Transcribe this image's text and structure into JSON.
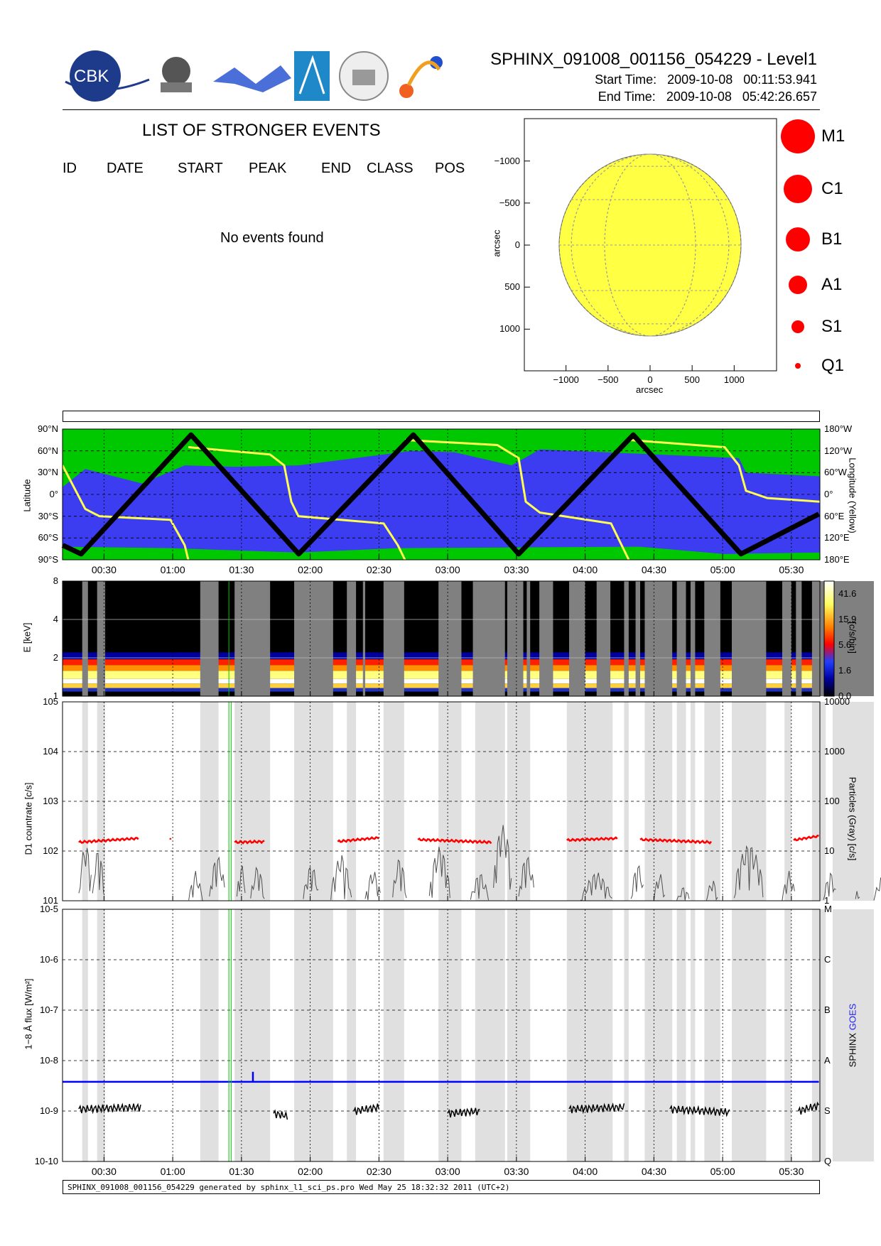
{
  "header": {
    "title": "SPHINX_091008_001156_054229 - Level1",
    "start_label": "Start Time:",
    "start_value": "2009-10-08   00:11:53.941",
    "end_label": "End Time:",
    "end_value": "2009-10-08   05:42:26.657",
    "logos": [
      "CBK",
      "P.N.Lebedev Physical Institute of the Russian Academy of Science",
      "MIFI",
      "triangle-logo",
      "seal-logo",
      "sphinx-logo"
    ]
  },
  "events": {
    "title": "LIST OF STRONGER EVENTS",
    "columns": [
      "ID",
      "DATE",
      "START",
      "PEAK",
      "END",
      "CLASS",
      "POS"
    ],
    "empty_text": "No events found"
  },
  "sun_map": {
    "xlabel": "arcsec",
    "ylabel": "arcsec",
    "xticks": [
      "−1000",
      "−500",
      "0",
      "500",
      "1000"
    ],
    "yticks": [
      "1000",
      "500",
      "0",
      "−500",
      "−1000"
    ],
    "disk_color": "#ffff44"
  },
  "size_legend": [
    "M1",
    "C1",
    "B1",
    "A1",
    "S1",
    "Q1"
  ],
  "colors": {
    "ocean": "#3c3cf0",
    "land": "#00c800",
    "track": "#000000",
    "longitude": "#ffff50",
    "countrate": "#ff0000",
    "particles": "#505050",
    "sphinx": "#000000",
    "goes": "#0000ff",
    "gap": "#e0e0e0",
    "flare_marker": "#00c800"
  },
  "time_axis": {
    "start": "00:11:54",
    "end": "05:42:27",
    "ticks": [
      "00:30",
      "01:00",
      "01:30",
      "02:00",
      "02:30",
      "03:00",
      "03:30",
      "04:00",
      "04:30",
      "05:00",
      "05:30"
    ]
  },
  "chart_data": [
    {
      "type": "line",
      "panel": "orbit",
      "ylabel": "Latitude",
      "y2label": "Longitude (Yellow)",
      "yticks": [
        "90°N",
        "60°N",
        "30°N",
        "0°",
        "30°S",
        "60°S",
        "90°S"
      ],
      "y2ticks": [
        "180°W",
        "120°W",
        "60°W",
        "0°",
        "60°E",
        "120°E",
        "180°E"
      ],
      "series": [
        {
          "color": "track",
          "x": [
            "00:12",
            "00:20",
            "01:08",
            "01:55",
            "02:45",
            "03:31",
            "04:21",
            "05:08",
            "05:42"
          ],
          "y": [
            -70,
            -82,
            82,
            -82,
            82,
            -82,
            82,
            -82,
            -27
          ]
        }
      ]
    },
    {
      "type": "heatmap",
      "panel": "spectrum",
      "ylabel": "E [keV]",
      "yticks": [
        "1",
        "2",
        "4",
        "8"
      ],
      "colorbar_label": "[c/s/bin]",
      "colorbar_ticks": [
        "0.0",
        "1.6",
        "5.6",
        "15.9",
        "41.6"
      ]
    },
    {
      "type": "line",
      "panel": "countrate",
      "ylabel": "D1 countrate [c/s]",
      "y2label": "Particles (Gray) [c/s]",
      "yticks": [
        "10^1",
        "10^2",
        "10^3",
        "10^4",
        "10^5"
      ],
      "y2ticks": [
        "1",
        "10",
        "100",
        "1000",
        "10000"
      ],
      "series": [
        {
          "color": "countrate",
          "segments": [
            {
              "x": [
                "00:19",
                "00:45"
              ],
              "y": [
                150,
                180
              ]
            },
            {
              "x": [
                "00:59",
                "00:59"
              ],
              "y": [
                175,
                175
              ]
            },
            {
              "x": [
                "01:27",
                "01:40"
              ],
              "y": [
                150,
                155
              ]
            },
            {
              "x": [
                "02:12",
                "02:30"
              ],
              "y": [
                155,
                185
              ]
            },
            {
              "x": [
                "02:47",
                "03:19"
              ],
              "y": [
                170,
                150
              ]
            },
            {
              "x": [
                "03:52",
                "04:14"
              ],
              "y": [
                165,
                180
              ]
            },
            {
              "x": [
                "04:24",
                "04:55"
              ],
              "y": [
                170,
                150
              ]
            },
            {
              "x": [
                "05:31",
                "05:42"
              ],
              "y": [
                165,
                200
              ]
            }
          ]
        }
      ]
    },
    {
      "type": "line",
      "panel": "flux",
      "ylabel": "1−8 Å flux [W/m²]",
      "y2label_sphinx": "SPHINX",
      "y2label_goes": "GOES",
      "yticks": [
        "10^-10",
        "10^-9",
        "10^-8",
        "10^-7",
        "10^-6",
        "10^-5"
      ],
      "y2ticks": [
        "Q",
        "S",
        "A",
        "B",
        "C",
        "M"
      ],
      "series": [
        {
          "color": "goes",
          "x": [
            "00:12",
            "01:35",
            "01:35",
            "01:35",
            "05:42"
          ],
          "y": [
            3.8e-09,
            3.8e-09,
            6e-09,
            3.8e-09,
            3.8e-09
          ]
        },
        {
          "color": "sphinx",
          "segments": [
            {
              "x": [
                "00:19",
                "00:46"
              ],
              "y": [
                1.1e-09,
                1.2e-09
              ]
            },
            {
              "x": [
                "01:44",
                "01:50"
              ],
              "y": [
                9e-10,
                8e-10
              ]
            },
            {
              "x": [
                "02:19",
                "02:30"
              ],
              "y": [
                1e-09,
                1.2e-09
              ]
            },
            {
              "x": [
                "03:00",
                "03:14"
              ],
              "y": [
                9e-10,
                1e-09
              ]
            },
            {
              "x": [
                "03:53",
                "04:17"
              ],
              "y": [
                1.1e-09,
                1.2e-09
              ]
            },
            {
              "x": [
                "04:37",
                "05:03"
              ],
              "y": [
                1.1e-09,
                9.5e-10
              ]
            },
            {
              "x": [
                "05:33",
                "05:42"
              ],
              "y": [
                1e-09,
                1.3e-09
              ]
            }
          ]
        }
      ]
    }
  ],
  "footer": "SPHINX_091008_001156_054229 generated by sphinx_l1_sci_ps.pro Wed May 25 18:32:32 2011 (UTC+2)"
}
